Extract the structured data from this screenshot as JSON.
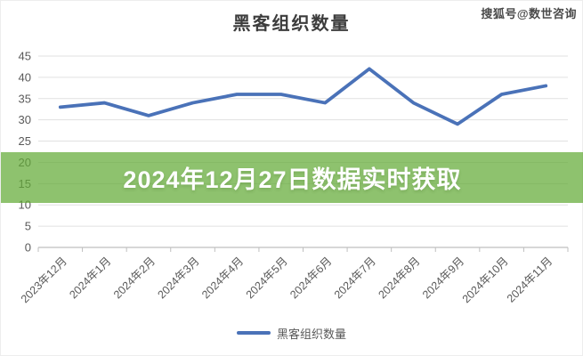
{
  "page": {
    "watermark": "搜狐号@数世咨询"
  },
  "banner": {
    "text": "2024年12月27日数据实时获取"
  },
  "chart_data": {
    "type": "line",
    "title": "黑客组织数量",
    "categories": [
      "2023年12月",
      "2024年1月",
      "2024年2月",
      "2024年3月",
      "2024年4月",
      "2024年5月",
      "2024年6月",
      "2024年7月",
      "2024年8月",
      "2024年9月",
      "2024年10月",
      "2024年11月"
    ],
    "series": [
      {
        "name": "黑客组织数量",
        "values": [
          33,
          34,
          31,
          34,
          36,
          36,
          34,
          42,
          34,
          29,
          36,
          38
        ]
      }
    ],
    "ylim": [
      0,
      45
    ],
    "ytick_step": 5,
    "grid": true,
    "legend_position": "bottom",
    "xlabel": "",
    "ylabel": "",
    "colors": {
      "line": "#4a72b8",
      "grid": "#e1e1e1",
      "axis": "#bfbfbf",
      "tick_text": "#595959",
      "title_text": "#3c3c3c",
      "banner_bg": "#63ab36",
      "banner_text": "#ffffff"
    }
  }
}
